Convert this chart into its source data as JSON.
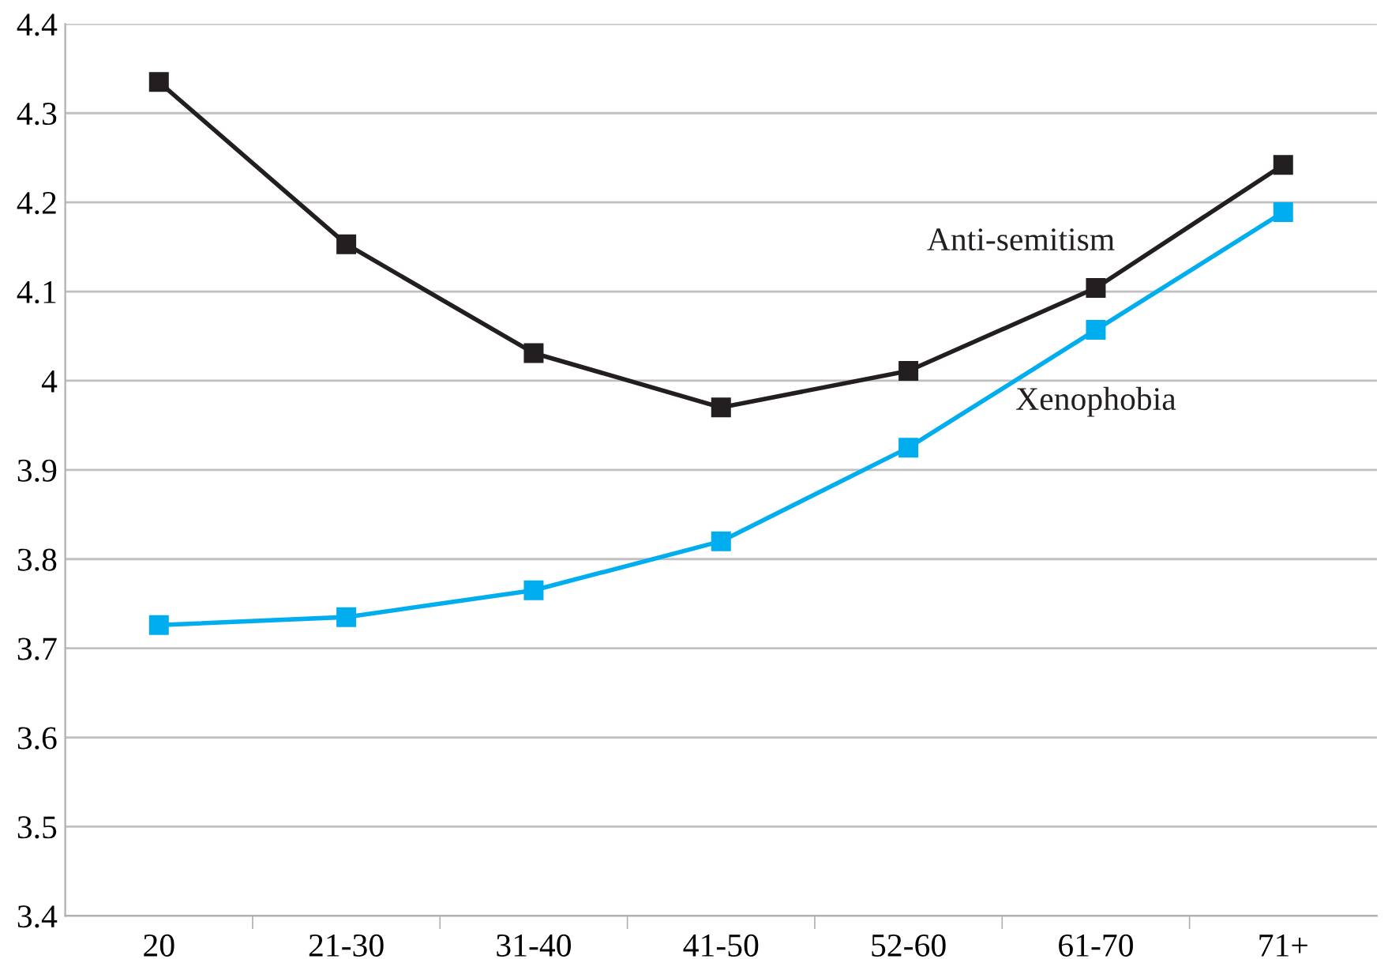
{
  "chart_data": {
    "type": "line",
    "categories": [
      "20",
      "21-30",
      "31-40",
      "41-50",
      "52-60",
      "61-70",
      "71+"
    ],
    "series": [
      {
        "name": "Anti-semitism",
        "color": "#231f20",
        "values": [
          4.335,
          4.153,
          4.031,
          3.97,
          4.011,
          4.104,
          4.242
        ]
      },
      {
        "name": "Xenophobia",
        "color": "#00aeef",
        "values": [
          3.726,
          3.735,
          3.765,
          3.82,
          3.925,
          4.057,
          4.189
        ]
      }
    ],
    "ylim": [
      3.4,
      4.4
    ],
    "yticks": [
      3.4,
      3.5,
      3.6,
      3.7,
      3.8,
      3.9,
      {
        "value": 4.0,
        "label": "4"
      },
      4.1,
      4.2,
      4.3,
      4.4
    ],
    "grid": "y",
    "marker": "square",
    "line_style": "solid",
    "legend": false
  }
}
